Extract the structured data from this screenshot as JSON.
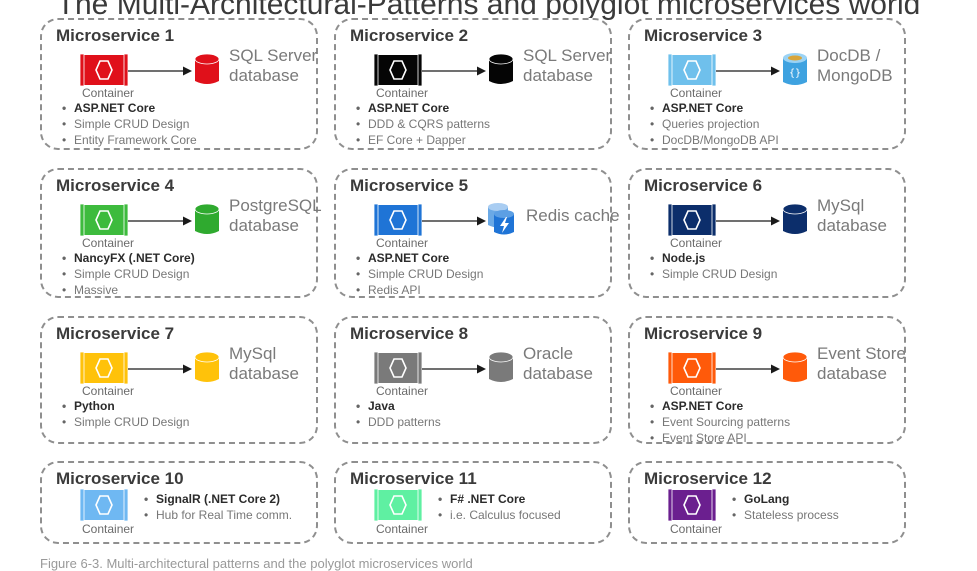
{
  "header": {
    "title": "The Multi-Architectural-Patterns and polyglot microservices world"
  },
  "caption": "Figure 6-3. Multi-architectural patterns and the polyglot microservices world",
  "container_label": "Container",
  "services": [
    {
      "title": "Microservice 1",
      "container_color": "#e0101a",
      "db_label": [
        "SQL Server",
        "database"
      ],
      "db_icon": "sql-database-icon",
      "db_color": "#e0101a",
      "bullets": [
        "ASP.NET Core",
        "Simple CRUD Design",
        "Entity Framework Core"
      ]
    },
    {
      "title": "Microservice 2",
      "container_color": "#050505",
      "db_label": [
        "SQL Server",
        "database"
      ],
      "db_icon": "sql-database-icon",
      "db_color": "#050505",
      "bullets": [
        "ASP.NET Core",
        "DDD & CQRS patterns",
        "EF Core + Dapper"
      ]
    },
    {
      "title": "Microservice 3",
      "container_color": "#6fc0ec",
      "db_label": [
        "DocDB /",
        "MongoDB"
      ],
      "db_icon": "docdb-icon",
      "db_color": "#3ea2e0",
      "bullets": [
        "ASP.NET Core",
        "Queries projection",
        "DocDB/MongoDB API"
      ]
    },
    {
      "title": "Microservice 4",
      "container_color": "#3dbb3d",
      "db_label": [
        "PostgreSQL",
        "database"
      ],
      "db_icon": "postgres-database-icon",
      "db_color": "#2faa2f",
      "bullets": [
        "NancyFX (.NET Core)",
        "Simple CRUD Design",
        "Massive"
      ]
    },
    {
      "title": "Microservice 5",
      "container_color": "#1f74d6",
      "db_label": [
        "Redis cache",
        ""
      ],
      "db_icon": "redis-cache-icon",
      "db_color": "#1f74d6",
      "bullets": [
        "ASP.NET Core",
        "Simple CRUD Design",
        "Redis API"
      ]
    },
    {
      "title": "Microservice 6",
      "container_color": "#0c2e6b",
      "db_label": [
        "MySql",
        "database"
      ],
      "db_icon": "mysql-database-icon",
      "db_color": "#0c2e6b",
      "bullets": [
        "Node.js",
        "Simple CRUD Design"
      ]
    },
    {
      "title": "Microservice 7",
      "container_color": "#ffc20a",
      "db_label": [
        "MySql",
        "database"
      ],
      "db_icon": "mysql-database-icon",
      "db_color": "#ffc20a",
      "bullets": [
        "Python",
        "Simple CRUD Design"
      ]
    },
    {
      "title": "Microservice 8",
      "container_color": "#7a7a7a",
      "db_label": [
        "Oracle",
        "database"
      ],
      "db_icon": "oracle-database-icon",
      "db_color": "#7a7a7a",
      "bullets": [
        "Java",
        "DDD patterns"
      ]
    },
    {
      "title": "Microservice 9",
      "container_color": "#ff5a0a",
      "db_label": [
        "Event Store",
        "database"
      ],
      "db_icon": "eventstore-database-icon",
      "db_color": "#ff5a0a",
      "bullets": [
        "ASP.NET Core",
        "Event Sourcing patterns",
        "Event Store API"
      ]
    },
    {
      "title": "Microservice 10",
      "container_color": "#6fb8f2",
      "bullets": [
        "SignalR (.NET Core 2)",
        "Hub for Real Time comm."
      ]
    },
    {
      "title": "Microservice 11",
      "container_color": "#5ff0a2",
      "bullets": [
        "F# .NET Core",
        "i.e. Calculus focused"
      ]
    },
    {
      "title": "Microservice 12",
      "container_color": "#6b1f8f",
      "bullets": [
        "GoLang",
        "Stateless process"
      ]
    }
  ]
}
